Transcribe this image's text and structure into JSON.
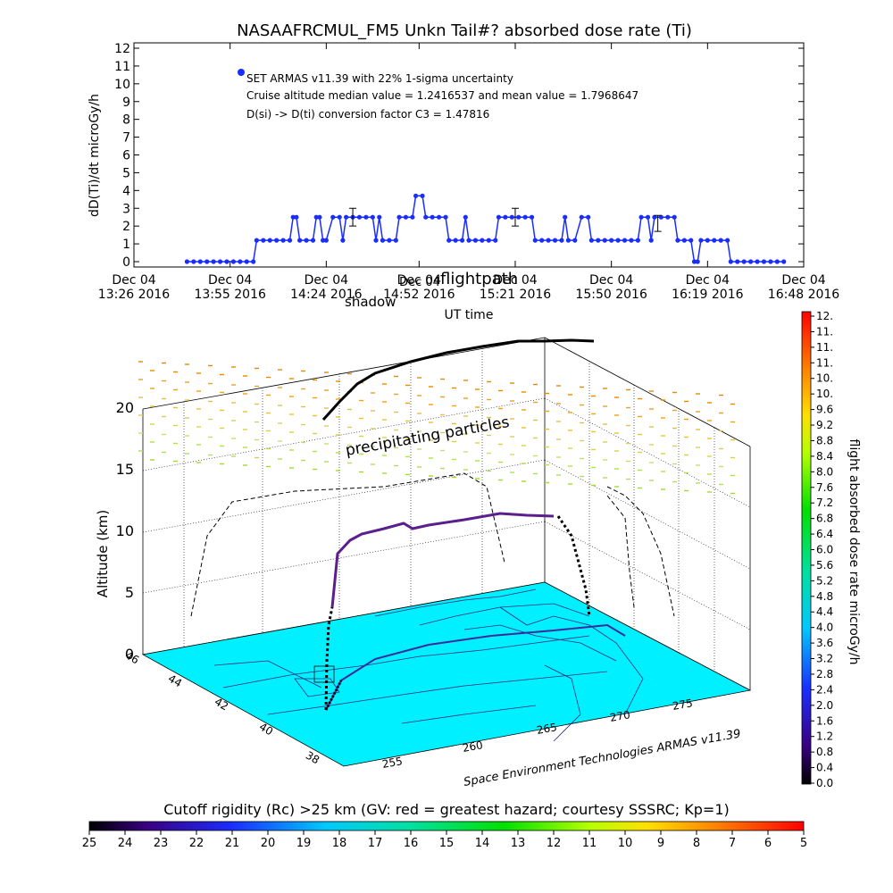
{
  "chart_data": [
    {
      "type": "line",
      "title": "NASAAFRCMUL_FM5 Unkn Tail#? absorbed dose rate (Ti)",
      "ylabel": "dD(Ti)/dt microGy/h",
      "xlabel": "UT time",
      "ylim": [
        0,
        12
      ],
      "yticks": [
        "0",
        "1",
        "2",
        "3",
        "4",
        "5",
        "6",
        "7",
        "8",
        "9",
        "10",
        "11",
        "12"
      ],
      "xlim": [
        "13:26",
        "16:48"
      ],
      "xticks": [
        {
          "t": "13:26",
          "date": "Dec 04",
          "time": "13:26 2016"
        },
        {
          "t": "13:55",
          "date": "Dec 04",
          "time": "13:55 2016"
        },
        {
          "t": "14:24",
          "date": "Dec 04",
          "time": "14:24 2016"
        },
        {
          "t": "14:52",
          "date": "Dec 04",
          "time": "14:52 2016"
        },
        {
          "t": "15:21",
          "date": "Dec 04",
          "time": "15:21 2016"
        },
        {
          "t": "15:50",
          "date": "Dec 04",
          "time": "15:50 2016"
        },
        {
          "t": "16:19",
          "date": "Dec 04",
          "time": "16:19 2016"
        },
        {
          "t": "16:48",
          "date": "Dec 04",
          "time": "16:48 2016"
        }
      ],
      "annotations": [
        "SET ARMAS v11.39 with 22% 1-sigma uncertainty",
        "Cruise altitude median value = 1.2416537 and mean value = 1.7968647",
        "D(si) -> D(ti) conversion factor C3 = 1.47816"
      ],
      "series": [
        {
          "values": [
            [
              "13:42",
              0
            ],
            [
              "13:44",
              0
            ],
            [
              "13:46",
              0
            ],
            [
              "13:48",
              0
            ],
            [
              "13:50",
              0
            ],
            [
              "13:52",
              0
            ],
            [
              "13:54",
              0
            ],
            [
              "13:56",
              0
            ],
            [
              "13:58",
              0
            ],
            [
              "14:00",
              0
            ],
            [
              "14:02",
              0
            ],
            [
              "14:03",
              1.2
            ],
            [
              "14:05",
              1.2
            ],
            [
              "14:07",
              1.2
            ],
            [
              "14:09",
              1.2
            ],
            [
              "14:11",
              1.2
            ],
            [
              "14:13",
              1.2
            ],
            [
              "14:14",
              2.5
            ],
            [
              "14:15",
              2.5
            ],
            [
              "14:16",
              1.2
            ],
            [
              "14:18",
              1.2
            ],
            [
              "14:20",
              1.2
            ],
            [
              "14:21",
              2.5
            ],
            [
              "14:22",
              2.5
            ],
            [
              "14:23",
              1.2
            ],
            [
              "14:24",
              1.2
            ],
            [
              "14:26",
              2.5
            ],
            [
              "14:28",
              2.5
            ],
            [
              "14:29",
              1.2
            ],
            [
              "14:30",
              2.5
            ],
            [
              "14:32",
              2.5
            ],
            [
              "14:34",
              2.5
            ],
            [
              "14:36",
              2.5
            ],
            [
              "14:38",
              2.5
            ],
            [
              "14:39",
              1.2
            ],
            [
              "14:40",
              2.5
            ],
            [
              "14:41",
              1.2
            ],
            [
              "14:43",
              1.2
            ],
            [
              "14:45",
              1.2
            ],
            [
              "14:46",
              2.5
            ],
            [
              "14:48",
              2.5
            ],
            [
              "14:50",
              2.5
            ],
            [
              "14:51",
              3.7
            ],
            [
              "14:53",
              3.7
            ],
            [
              "14:54",
              2.5
            ],
            [
              "14:56",
              2.5
            ],
            [
              "14:58",
              2.5
            ],
            [
              "15:00",
              2.5
            ],
            [
              "15:01",
              1.2
            ],
            [
              "15:03",
              1.2
            ],
            [
              "15:05",
              1.2
            ],
            [
              "15:06",
              2.5
            ],
            [
              "15:07",
              1.2
            ],
            [
              "15:09",
              1.2
            ],
            [
              "15:11",
              1.2
            ],
            [
              "15:13",
              1.2
            ],
            [
              "15:15",
              1.2
            ],
            [
              "15:16",
              2.5
            ],
            [
              "15:18",
              2.5
            ],
            [
              "15:20",
              2.5
            ],
            [
              "15:22",
              2.5
            ],
            [
              "15:24",
              2.5
            ],
            [
              "15:26",
              2.5
            ],
            [
              "15:27",
              1.2
            ],
            [
              "15:29",
              1.2
            ],
            [
              "15:31",
              1.2
            ],
            [
              "15:33",
              1.2
            ],
            [
              "15:35",
              1.2
            ],
            [
              "15:36",
              2.5
            ],
            [
              "15:37",
              1.2
            ],
            [
              "15:39",
              1.2
            ],
            [
              "15:41",
              2.5
            ],
            [
              "15:43",
              2.5
            ],
            [
              "15:44",
              1.2
            ],
            [
              "15:46",
              1.2
            ],
            [
              "15:48",
              1.2
            ],
            [
              "15:50",
              1.2
            ],
            [
              "15:52",
              1.2
            ],
            [
              "15:54",
              1.2
            ],
            [
              "15:56",
              1.2
            ],
            [
              "15:58",
              1.2
            ],
            [
              "15:59",
              2.5
            ],
            [
              "16:01",
              2.5
            ],
            [
              "16:02",
              1.2
            ],
            [
              "16:03",
              2.5
            ],
            [
              "16:05",
              2.5
            ],
            [
              "16:07",
              2.5
            ],
            [
              "16:09",
              2.5
            ],
            [
              "16:10",
              1.2
            ],
            [
              "16:12",
              1.2
            ],
            [
              "16:14",
              1.2
            ],
            [
              "16:15",
              0
            ],
            [
              "16:16",
              0
            ],
            [
              "16:17",
              1.2
            ],
            [
              "16:19",
              1.2
            ],
            [
              "16:21",
              1.2
            ],
            [
              "16:23",
              1.2
            ],
            [
              "16:25",
              1.2
            ],
            [
              "16:26",
              0
            ],
            [
              "16:28",
              0
            ],
            [
              "16:30",
              0
            ],
            [
              "16:32",
              0
            ],
            [
              "16:34",
              0
            ],
            [
              "16:36",
              0
            ],
            [
              "16:38",
              0
            ],
            [
              "16:40",
              0
            ],
            [
              "16:42",
              0
            ]
          ],
          "error_bars": [
            {
              "t": "14:32",
              "y": 2.5,
              "lo": 2.0,
              "hi": 3.0
            },
            {
              "t": "15:21",
              "y": 2.5,
              "lo": 2.0,
              "hi": 3.0
            },
            {
              "t": "16:04",
              "y": 2.2,
              "lo": 1.7,
              "hi": 2.6
            }
          ]
        }
      ],
      "overlay_labels": [
        "shadow",
        "flightpath",
        "Dec 04"
      ]
    },
    {
      "type": "scatter",
      "ylabel": "Altitude (km)",
      "zticks": [
        "0",
        "5",
        "10",
        "15",
        "20"
      ],
      "xticks": [
        "255",
        "260",
        "265",
        "270",
        "275"
      ],
      "yticks": [
        "38",
        "40",
        "42",
        "44",
        "46"
      ],
      "annotations": [
        "precipitating particles",
        "Space Environment Technologies ARMAS v11.39"
      ],
      "colorbar_label": "flight absorbed dose rate microGy/h",
      "colorbar_ticks": [
        "0.0",
        "0.4",
        "0.8",
        "1.2",
        "1.6",
        "2.0",
        "2.4",
        "2.8",
        "3.2",
        "3.6",
        "4.0",
        "4.4",
        "4.8",
        "5.2",
        "5.6",
        "6.0",
        "6.4",
        "6.8",
        "7.2",
        "7.6",
        "8.0",
        "8.4",
        "8.8",
        "9.2",
        "9.6",
        "10.",
        "10.",
        "11.",
        "11.",
        "11.",
        "12."
      ],
      "colors": {
        "map": "#00f0ff",
        "track_cruise": "#5a1f8c",
        "track_top": "#000000",
        "grid": "#000000"
      }
    },
    {
      "type": "heatmap",
      "title": "Cutoff rigidity (Rc) >25 km (GV: red = greatest hazard; courtesy SSSRC; Kp=1)",
      "ticks": [
        "25",
        "24",
        "23",
        "22",
        "21",
        "20",
        "19",
        "18",
        "17",
        "16",
        "15",
        "14",
        "13",
        "12",
        "11",
        "10",
        "9",
        "8",
        "7",
        "6",
        "5"
      ]
    }
  ]
}
